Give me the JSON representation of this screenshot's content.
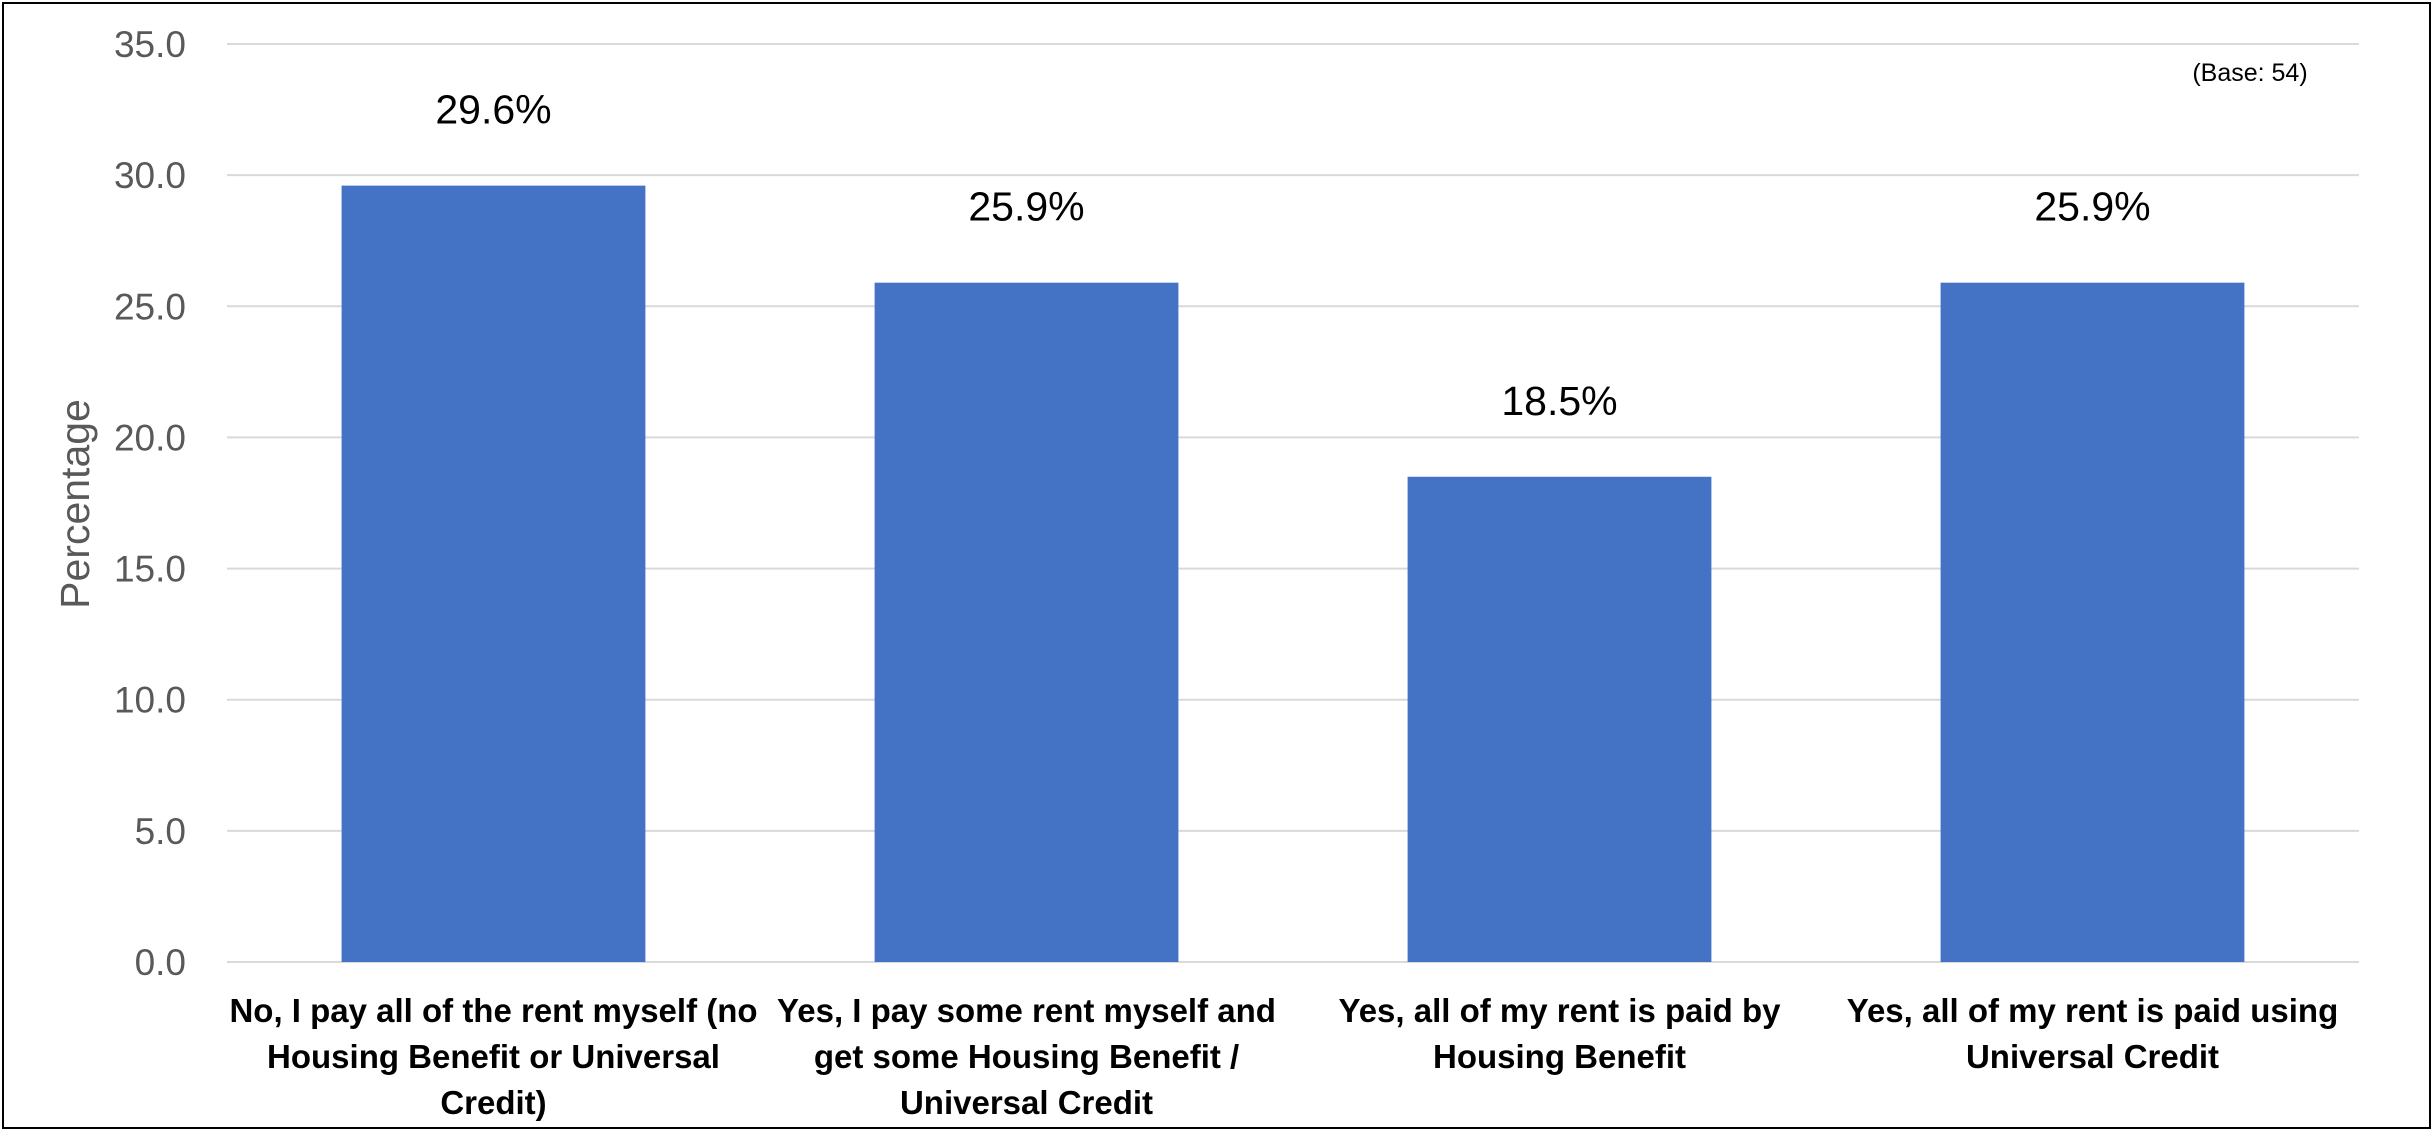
{
  "chart_data": {
    "type": "bar",
    "categories": [
      [
        "No, I pay all of the rent myself (no",
        "Housing Benefit or Universal",
        "Credit)"
      ],
      [
        "Yes, I pay some rent myself and",
        "get some Housing Benefit /",
        "Universal Credit"
      ],
      [
        "Yes, all of my rent is paid by",
        "Housing Benefit"
      ],
      [
        "Yes, all of my rent is paid using",
        "Universal Credit"
      ]
    ],
    "values": [
      29.6,
      25.9,
      18.5,
      25.9
    ],
    "data_labels": [
      "29.6%",
      "25.9%",
      "18.5%",
      "25.9%"
    ],
    "ylabel": "Percentage",
    "ylim": [
      0,
      35
    ],
    "yticks": [
      "0.0",
      "5.0",
      "10.0",
      "15.0",
      "20.0",
      "25.0",
      "30.0",
      "35.0"
    ],
    "note": "(Base: 54)",
    "bar_color": "#4472c4",
    "grid": true
  }
}
